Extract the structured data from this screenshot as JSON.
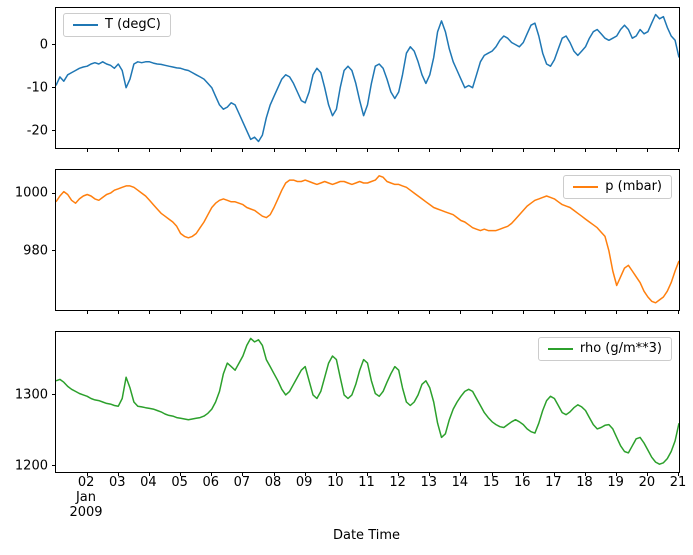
{
  "chart_data": {
    "type": "line",
    "xlabel": "Date Time",
    "x_offset": {
      "month": "Jan",
      "year": "2009"
    },
    "xlim": [
      1,
      21
    ],
    "x_start": 1.0,
    "x_step": 0.125,
    "x_tick_days": [
      2,
      3,
      4,
      5,
      6,
      7,
      8,
      9,
      10,
      11,
      12,
      13,
      14,
      15,
      16,
      17,
      18,
      19,
      20,
      21
    ],
    "x_tick_labels": [
      "02",
      "03",
      "04",
      "05",
      "06",
      "07",
      "08",
      "09",
      "10",
      "11",
      "12",
      "13",
      "14",
      "15",
      "16",
      "17",
      "18",
      "19",
      "20",
      "21"
    ],
    "grid": false,
    "panels": [
      {
        "series_name": "T (degC)",
        "line_name": "temperature-series-line",
        "color": "#1f77b4",
        "legend_loc": "upper-left",
        "ylim": [
          -24,
          8.5
        ],
        "y_ticks": [
          0,
          -10,
          -20
        ],
        "values": [
          -9.5,
          -7.5,
          -8.5,
          -7.0,
          -6.5,
          -6.0,
          -5.5,
          -5.2,
          -5.0,
          -4.5,
          -4.2,
          -4.5,
          -4.0,
          -4.5,
          -4.8,
          -5.5,
          -4.5,
          -6.0,
          -10.0,
          -8.0,
          -4.5,
          -4.0,
          -4.2,
          -4.0,
          -4.0,
          -4.3,
          -4.5,
          -4.6,
          -4.8,
          -5.0,
          -5.2,
          -5.4,
          -5.5,
          -5.8,
          -6.0,
          -6.5,
          -7.0,
          -7.5,
          -8.0,
          -9.0,
          -10.0,
          -12.0,
          -14.0,
          -15.0,
          -14.5,
          -13.5,
          -14.0,
          -16.0,
          -18.0,
          -20.0,
          -22.0,
          -21.5,
          -22.5,
          -21.0,
          -17.0,
          -14.0,
          -12.0,
          -10.0,
          -8.0,
          -7.0,
          -7.5,
          -9.0,
          -11.0,
          -13.0,
          -13.5,
          -11.0,
          -7.0,
          -5.5,
          -6.5,
          -10.0,
          -14.0,
          -16.5,
          -15.0,
          -10.0,
          -6.0,
          -5.0,
          -6.0,
          -9.0,
          -13.0,
          -16.5,
          -14.0,
          -9.0,
          -5.0,
          -4.5,
          -5.5,
          -8.0,
          -11.0,
          -12.5,
          -11.0,
          -7.0,
          -2.0,
          -0.5,
          -1.5,
          -4.0,
          -7.0,
          -9.0,
          -7.0,
          -3.0,
          3.0,
          5.5,
          3.0,
          -1.0,
          -4.0,
          -6.0,
          -8.0,
          -10.0,
          -9.5,
          -10.0,
          -7.0,
          -4.0,
          -2.5,
          -2.0,
          -1.5,
          -0.5,
          1.0,
          2.0,
          1.5,
          0.5,
          0.0,
          -0.5,
          0.5,
          2.5,
          4.5,
          5.0,
          2.0,
          -2.0,
          -4.5,
          -5.0,
          -3.5,
          -1.0,
          1.5,
          2.0,
          0.5,
          -1.5,
          -2.5,
          -1.5,
          -0.5,
          1.5,
          3.0,
          3.5,
          2.5,
          1.5,
          1.0,
          1.5,
          2.0,
          3.5,
          4.5,
          3.5,
          1.5,
          2.0,
          3.5,
          2.5,
          3.0,
          5.0,
          7.0,
          6.0,
          6.5,
          4.0,
          2.0,
          1.0,
          -3.0
        ]
      },
      {
        "series_name": "p (mbar)",
        "line_name": "pressure-series-line",
        "color": "#ff7f0e",
        "legend_loc": "upper-right",
        "ylim": [
          959.5,
          1008
        ],
        "y_ticks": [
          1000,
          980
        ],
        "values": [
          997,
          999,
          1000.5,
          999.5,
          997.5,
          996.5,
          998,
          999,
          999.5,
          999,
          998,
          997.5,
          998.5,
          999.5,
          1000,
          1001,
          1001.5,
          1002,
          1002.5,
          1002.5,
          1002,
          1001,
          1000,
          999,
          997.5,
          996,
          994.5,
          993,
          992,
          991,
          990,
          988.5,
          986,
          985,
          984.5,
          985,
          986,
          988,
          990,
          992.5,
          995,
          996.5,
          997.5,
          998,
          997.5,
          997,
          997,
          996.5,
          996,
          995,
          994.5,
          994,
          993,
          992,
          991.5,
          992.5,
          995,
          998,
          1001,
          1003.5,
          1004.5,
          1004.5,
          1004,
          1004,
          1004.5,
          1004,
          1003.5,
          1003,
          1003.5,
          1004,
          1003.5,
          1003,
          1003.5,
          1004,
          1004,
          1003.5,
          1003,
          1003.5,
          1004,
          1003.5,
          1003.5,
          1004,
          1004.5,
          1006,
          1005.5,
          1004,
          1003.5,
          1003,
          1003,
          1002.5,
          1002,
          1001,
          1000,
          999,
          998,
          997,
          996,
          995,
          994.5,
          994,
          993.5,
          993,
          992.5,
          991.5,
          990.5,
          990,
          989,
          988,
          987.5,
          987,
          987.5,
          987,
          987,
          987,
          987.5,
          988,
          988.5,
          989.5,
          991,
          992.5,
          994,
          995.5,
          996.5,
          997.5,
          998,
          998.5,
          999,
          998.5,
          998,
          997,
          996,
          995.5,
          995,
          994,
          993,
          992,
          991,
          990,
          989,
          988,
          986.5,
          985,
          980,
          973,
          968,
          971,
          974,
          975,
          973,
          971,
          969,
          966,
          964,
          962.5,
          962,
          963,
          964,
          966,
          969,
          973,
          976.5
        ]
      },
      {
        "series_name": "rho (g/m**3)",
        "line_name": "density-series-line",
        "color": "#2ca02c",
        "legend_loc": "upper-right",
        "ylim": [
          1191,
          1389
        ],
        "y_ticks": [
          1300,
          1200
        ],
        "values": [
          1320,
          1322,
          1318,
          1312,
          1308,
          1305,
          1302,
          1300,
          1298,
          1295,
          1293,
          1292,
          1290,
          1288,
          1287,
          1285,
          1284,
          1295,
          1325,
          1310,
          1290,
          1284,
          1283,
          1282,
          1281,
          1280,
          1278,
          1276,
          1273,
          1271,
          1270,
          1268,
          1267,
          1266,
          1265,
          1266,
          1267,
          1268,
          1270,
          1274,
          1280,
          1290,
          1305,
          1330,
          1345,
          1340,
          1335,
          1345,
          1355,
          1370,
          1380,
          1375,
          1378,
          1370,
          1350,
          1340,
          1330,
          1320,
          1308,
          1300,
          1305,
          1315,
          1325,
          1335,
          1340,
          1320,
          1300,
          1295,
          1305,
          1325,
          1345,
          1355,
          1350,
          1325,
          1300,
          1295,
          1300,
          1315,
          1335,
          1350,
          1345,
          1320,
          1302,
          1298,
          1305,
          1318,
          1330,
          1340,
          1335,
          1310,
          1290,
          1285,
          1290,
          1300,
          1315,
          1320,
          1310,
          1290,
          1260,
          1240,
          1245,
          1265,
          1280,
          1290,
          1298,
          1305,
          1308,
          1305,
          1295,
          1285,
          1275,
          1268,
          1262,
          1258,
          1255,
          1254,
          1258,
          1262,
          1265,
          1262,
          1258,
          1252,
          1248,
          1246,
          1260,
          1278,
          1292,
          1298,
          1295,
          1285,
          1275,
          1272,
          1276,
          1282,
          1286,
          1283,
          1278,
          1268,
          1258,
          1252,
          1254,
          1257,
          1258,
          1252,
          1240,
          1228,
          1220,
          1218,
          1228,
          1238,
          1240,
          1232,
          1222,
          1212,
          1205,
          1202,
          1204,
          1210,
          1220,
          1235,
          1260
        ]
      }
    ]
  }
}
